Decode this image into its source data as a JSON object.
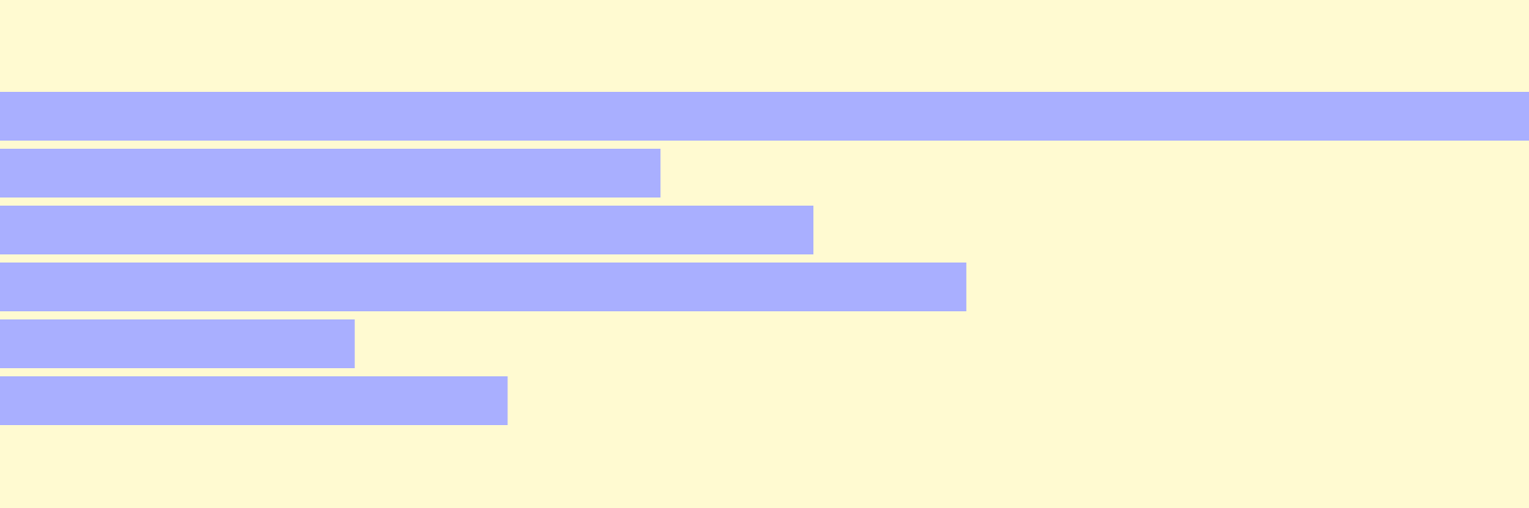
{
  "colors": {
    "background": "#fffad1",
    "bar": "#a9afff"
  },
  "chart_data": {
    "type": "bar",
    "orientation": "horizontal",
    "title": "",
    "xlabel": "",
    "ylabel": "",
    "grid": false,
    "legend": "none",
    "xlim": [
      0,
      100
    ],
    "categories": [
      "",
      "",
      "",
      "",
      "",
      ""
    ],
    "values": [
      100,
      43.2,
      53.2,
      63.2,
      23.2,
      33.2
    ]
  }
}
